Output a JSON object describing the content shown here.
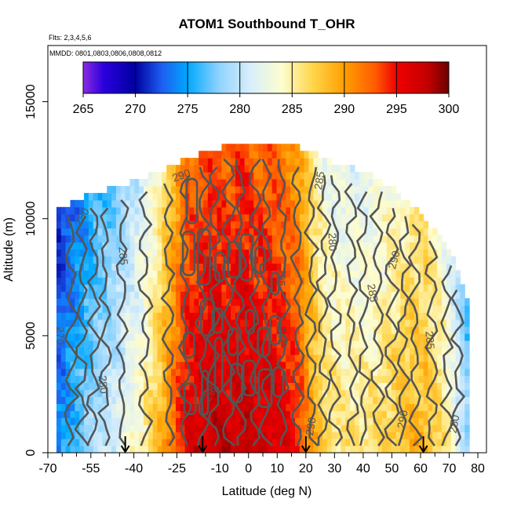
{
  "chart_data": {
    "type": "heatmap",
    "title": "ATOM1 Southbound T_OHR",
    "subtitle_flights": "Flts: 2,3,4,5,6",
    "subtitle_dates": "MMDD: 0801,0803,0806,0808,0812",
    "xlabel": "Latitude (deg N)",
    "ylabel": "Altitude (m)",
    "xlim": [
      -70,
      83
    ],
    "ylim": [
      0,
      17400
    ],
    "x_ticks": [
      {
        "value": -70,
        "label": "-70"
      },
      {
        "value": -55,
        "label": "-55"
      },
      {
        "value": -40,
        "label": "-40"
      },
      {
        "value": -25,
        "label": "-25"
      },
      {
        "value": -10,
        "label": "-10"
      },
      {
        "value": 0,
        "label": "0"
      },
      {
        "value": 10,
        "label": "10"
      },
      {
        "value": 20,
        "label": "20"
      },
      {
        "value": 30,
        "label": "30"
      },
      {
        "value": 40,
        "label": "40"
      },
      {
        "value": 50,
        "label": "50"
      },
      {
        "value": 60,
        "label": "60"
      },
      {
        "value": 70,
        "label": "70"
      },
      {
        "value": 80,
        "label": "80"
      }
    ],
    "x_minor_ticks": [
      -65,
      -60,
      -50,
      -45,
      -35,
      -30,
      -20,
      -15,
      -5,
      5,
      15,
      25,
      35,
      45,
      55,
      65,
      75
    ],
    "y_ticks": [
      {
        "value": 0,
        "label": "0"
      },
      {
        "value": 5000,
        "label": "5000"
      },
      {
        "value": 10000,
        "label": "10000"
      },
      {
        "value": 15000,
        "label": "15000"
      }
    ],
    "colorbar": {
      "min": 265,
      "max": 300,
      "ticks": [
        "265",
        "270",
        "275",
        "280",
        "285",
        "290",
        "295",
        "300"
      ],
      "stops": [
        {
          "t": 265,
          "color": "#8a2be2"
        },
        {
          "t": 267,
          "color": "#2a00dd"
        },
        {
          "t": 270,
          "color": "#0000a0"
        },
        {
          "t": 272.5,
          "color": "#1e5cf0"
        },
        {
          "t": 275,
          "color": "#00a8ff"
        },
        {
          "t": 278,
          "color": "#8fd3ff"
        },
        {
          "t": 281,
          "color": "#d8eefb"
        },
        {
          "t": 284,
          "color": "#fdfdd0"
        },
        {
          "t": 287,
          "color": "#ffd54a"
        },
        {
          "t": 290,
          "color": "#ff9f00"
        },
        {
          "t": 293,
          "color": "#ff5a00"
        },
        {
          "t": 295,
          "color": "#f00000"
        },
        {
          "t": 298,
          "color": "#c30000"
        },
        {
          "t": 300,
          "color": "#6a0000"
        }
      ]
    },
    "temperature_profile": {
      "latitude": [
        -67,
        -62,
        -57,
        -52,
        -47,
        -42,
        -37,
        -32,
        -27,
        -22,
        -17,
        -12,
        -7,
        -2,
        3,
        8,
        13,
        18,
        22,
        27,
        32,
        37,
        42,
        47,
        52,
        57,
        62,
        67,
        72,
        76
      ],
      "surface_temperature": [
        274,
        276,
        278,
        280,
        281,
        283,
        285,
        288,
        292,
        296,
        297,
        298,
        297,
        298,
        297,
        297,
        296,
        294,
        290,
        287,
        286,
        286,
        286,
        287,
        288,
        289,
        289,
        287,
        283,
        279
      ],
      "top_altitude": [
        10500,
        10500,
        10800,
        11000,
        11200,
        11400,
        11600,
        11800,
        12100,
        12400,
        12600,
        12800,
        13000,
        13100,
        13100,
        13100,
        13000,
        12900,
        12700,
        12400,
        12200,
        12000,
        11800,
        11400,
        11000,
        10400,
        9800,
        9000,
        8000,
        6400
      ],
      "lapse_K_per_km": 0.35
    },
    "contour_labels": [
      {
        "text": "280",
        "lat": -57,
        "alt": 10000,
        "angle": -60
      },
      {
        "text": "285",
        "lat": -45,
        "alt": 8400,
        "angle": 85
      },
      {
        "text": "290",
        "lat": -23,
        "alt": 11700,
        "angle": -20
      },
      {
        "text": "285",
        "lat": 26,
        "alt": 11600,
        "angle": -80
      },
      {
        "text": "280",
        "lat": 28,
        "alt": 9000,
        "angle": 88
      },
      {
        "text": "290",
        "lat": 52,
        "alt": 8200,
        "angle": -75
      },
      {
        "text": "285",
        "lat": 42,
        "alt": 6800,
        "angle": 80
      },
      {
        "text": "285",
        "lat": 62,
        "alt": 4800,
        "angle": 85
      },
      {
        "text": "295",
        "lat": 10,
        "alt": 7500,
        "angle": 90
      },
      {
        "text": "300",
        "lat": 10,
        "alt": 5000,
        "angle": 90
      },
      {
        "text": "295",
        "lat": -12,
        "alt": 2500,
        "angle": -60
      },
      {
        "text": "280",
        "lat": -52,
        "alt": 2900,
        "angle": 85
      },
      {
        "text": "270",
        "lat": -67,
        "alt": 5000,
        "angle": 90
      },
      {
        "text": "290",
        "lat": 23,
        "alt": 1100,
        "angle": -80
      },
      {
        "text": "290",
        "lat": 55,
        "alt": 1400,
        "angle": -80
      },
      {
        "text": "280",
        "lat": 73,
        "alt": 1200,
        "angle": -80
      }
    ],
    "arrows_latitude": [
      -43,
      -16,
      20,
      61
    ]
  }
}
